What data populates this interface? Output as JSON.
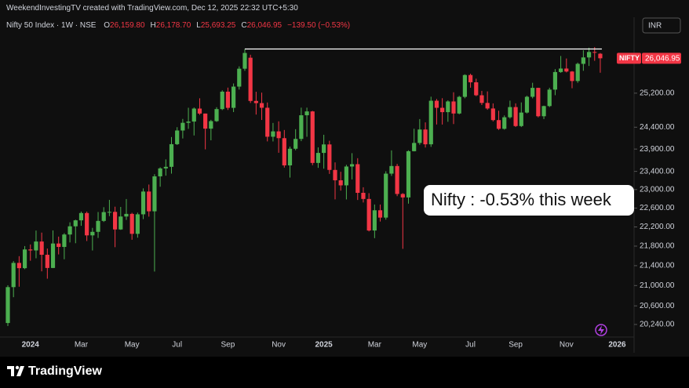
{
  "header": {
    "credit": "WeekendInvestingTV created with TradingView.com, Dec 12, 2025 22:32 UTC+5:30"
  },
  "legend": {
    "symbol": "Nifty 50 Index · 1W · NSE",
    "fields": [
      {
        "key": "O",
        "label": "26,159.80"
      },
      {
        "key": "H",
        "label": "26,178.70"
      },
      {
        "key": "L",
        "label": "25,693.25"
      },
      {
        "key": "C",
        "label": "26,046.95"
      }
    ],
    "change": "−139.50 (−0.53%)"
  },
  "currency": "INR",
  "footer": {
    "brand": "TradingView"
  },
  "chart_data": {
    "type": "candlestick",
    "annotation": "Nifty : -0.53% this week",
    "price_label": {
      "name": "NIFTY",
      "label": "26,046.95"
    },
    "reference_line": {
      "value": 26277,
      "color": "#ffffff"
    },
    "up_color": "#4caf50",
    "down_color": "#f23645",
    "log_scale": true,
    "grid": false,
    "ylim": [
      20000,
      27080
    ],
    "yticks": [
      {
        "value": 20240,
        "label": "20,240.00"
      },
      {
        "value": 20600,
        "label": "20,600.00"
      },
      {
        "value": 21000,
        "label": "21,000.00"
      },
      {
        "value": 21400,
        "label": "21,400.00"
      },
      {
        "value": 21800,
        "label": "21,800.00"
      },
      {
        "value": 22200,
        "label": "22,200.00"
      },
      {
        "value": 22600,
        "label": "22,600.00"
      },
      {
        "value": 23000,
        "label": "23,000.00"
      },
      {
        "value": 23400,
        "label": "23,400.00"
      },
      {
        "value": 23900,
        "label": "23,900.00"
      },
      {
        "value": 24400,
        "label": "24,400.00"
      },
      {
        "value": 25200,
        "label": "25,200.00"
      }
    ],
    "categories": [
      null,
      null,
      null,
      null,
      "2024",
      null,
      null,
      null,
      null,
      null,
      null,
      null,
      null,
      "Mar",
      null,
      null,
      null,
      null,
      null,
      null,
      null,
      null,
      "May",
      null,
      null,
      null,
      null,
      null,
      null,
      null,
      "Jul",
      null,
      null,
      null,
      null,
      null,
      null,
      null,
      null,
      "Sep",
      null,
      null,
      null,
      null,
      null,
      null,
      null,
      null,
      "Nov",
      null,
      null,
      null,
      null,
      null,
      null,
      null,
      "2025",
      null,
      null,
      null,
      null,
      null,
      null,
      null,
      null,
      "Mar",
      null,
      null,
      null,
      null,
      null,
      null,
      null,
      "May",
      null,
      null,
      null,
      null,
      null,
      null,
      null,
      null,
      "Jul",
      null,
      null,
      null,
      null,
      null,
      null,
      null,
      "Sep",
      null,
      null,
      null,
      null,
      null,
      null,
      null,
      null,
      "Nov",
      null,
      null,
      null,
      null,
      null,
      null,
      null,
      null,
      "2026",
      null
    ],
    "open": [
      20268,
      20969,
      21456,
      21349,
      21731,
      21711,
      21895,
      21622,
      21353,
      21854,
      21783,
      22041,
      22213,
      22339,
      22494,
      22023,
      22097,
      22327,
      22514,
      22519,
      22147,
      22420,
      22476,
      22055,
      22467,
      22957,
      22531,
      23290,
      23466,
      23501,
      24011,
      24324,
      24502,
      24531,
      24835,
      24718,
      24367,
      24541,
      24823,
      25236,
      24852,
      25357,
      25791,
      26061,
      25015,
      24964,
      24854,
      24181,
      24304,
      24148,
      23533,
      23907,
      24131,
      24678,
      24768,
      23588,
      23813,
      24005,
      23432,
      23203,
      23092,
      23508,
      23560,
      22929,
      22796,
      22125,
      22553,
      22397,
      23350,
      23519,
      22904,
      22829,
      23852,
      24039,
      24347,
      24008,
      25020,
      24853,
      24751,
      25003,
      24719,
      25112,
      25637,
      25461,
      25150,
      24968,
      24837,
      24565,
      24363,
      24631,
      24870,
      24427,
      24741,
      25114,
      25327,
      24655,
      24894,
      25285,
      25710,
      25795,
      25722,
      25492,
      25910,
      26068,
      26203,
      26159.8,
      null,
      null,
      null,
      null
    ],
    "high": [
      21006,
      21493,
      21593,
      21801,
      21834,
      22124,
      22081,
      21750,
      22127,
      21997,
      22069,
      22297,
      22353,
      22526,
      22526,
      22180,
      22516,
      22619,
      22776,
      22630,
      22625,
      22795,
      22499,
      22503,
      23026,
      23110,
      23338,
      23490,
      23667,
      24174,
      24401,
      24592,
      24854,
      24861,
      25078,
      24718,
      24572,
      24867,
      25268,
      25333,
      25433,
      25849,
      26277,
      26135,
      25234,
      25213,
      24978,
      24499,
      24537,
      24336,
      23956,
      24354,
      24857,
      24857,
      24781,
      23938,
      24226,
      24089,
      23600,
      23391,
      23546,
      23807,
      23694,
      23050,
      22922,
      22677,
      22676,
      23403,
      23870,
      23566,
      22923,
      23872,
      24365,
      24589,
      24512,
      25116,
      25062,
      25080,
      25030,
      25222,
      25137,
      25655,
      25669,
      25548,
      25255,
      25242,
      24957,
      24784,
      24674,
      25022,
      24958,
      24980,
      25139,
      25449,
      25330,
      24904,
      25330,
      25781,
      26104,
      26042,
      25735,
      25940,
      26246,
      26310,
      26326,
      26178.7,
      null,
      null,
      null,
      null
    ],
    "low": [
      20210,
      20770,
      20977,
      21329,
      21500,
      21550,
      21285,
      21137,
      21350,
      21629,
      21530,
      21876,
      21860,
      22224,
      21905,
      21710,
      21969,
      22304,
      22429,
      21778,
      22138,
      22348,
      21932,
      21975,
      22365,
      22417,
      21281,
      23062,
      23305,
      23350,
      23992,
      24141,
      24362,
      24210,
      24687,
      23893,
      24099,
      24522,
      24799,
      24802,
      24753,
      25286,
      25739,
      24967,
      24694,
      24568,
      24074,
      24073,
      23816,
      23484,
      23263,
      23873,
      24080,
      24180,
      23537,
      23478,
      23460,
      23344,
      22787,
      22977,
      22786,
      23222,
      22774,
      22720,
      22105,
      21965,
      22314,
      22353,
      23300,
      22857,
      21744,
      22695,
      23847,
      23997,
      23935,
      23950,
      24463,
      24462,
      24526,
      24473,
      24700,
      25078,
      25331,
      25129,
      24918,
      24806,
      24535,
      24337,
      24344,
      24600,
      24405,
      24404,
      24720,
      25076,
      24629,
      24588,
      24870,
      25152,
      25690,
      25700,
      25318,
      25449,
      25740,
      25858,
      25985,
      25693.25,
      null,
      null,
      null,
      null
    ],
    "close": [
      20969,
      21456,
      21349,
      21731,
      21711,
      21895,
      21622,
      21353,
      21854,
      21783,
      22041,
      22213,
      22339,
      22494,
      22023,
      22097,
      22327,
      22514,
      22519,
      22147,
      22420,
      22476,
      22055,
      22467,
      22957,
      22531,
      23290,
      23466,
      23501,
      24011,
      24324,
      24502,
      24531,
      24835,
      24718,
      24367,
      24541,
      24823,
      25236,
      24852,
      25357,
      25791,
      26179,
      25015,
      24964,
      24854,
      24181,
      24304,
      24148,
      23533,
      23907,
      24131,
      24678,
      24768,
      23588,
      23813,
      24005,
      23432,
      23203,
      23092,
      23508,
      23560,
      22929,
      22796,
      22125,
      22553,
      22397,
      23350,
      23519,
      22904,
      22829,
      23852,
      24039,
      24347,
      24008,
      25020,
      24853,
      24751,
      25003,
      24719,
      25112,
      25637,
      25461,
      25150,
      24968,
      24837,
      24565,
      24363,
      24631,
      24870,
      24427,
      24741,
      25114,
      25327,
      24655,
      24894,
      25285,
      25710,
      25795,
      25722,
      25492,
      25910,
      26068,
      26203,
      26186,
      26046.95,
      null,
      null,
      null,
      null
    ]
  }
}
